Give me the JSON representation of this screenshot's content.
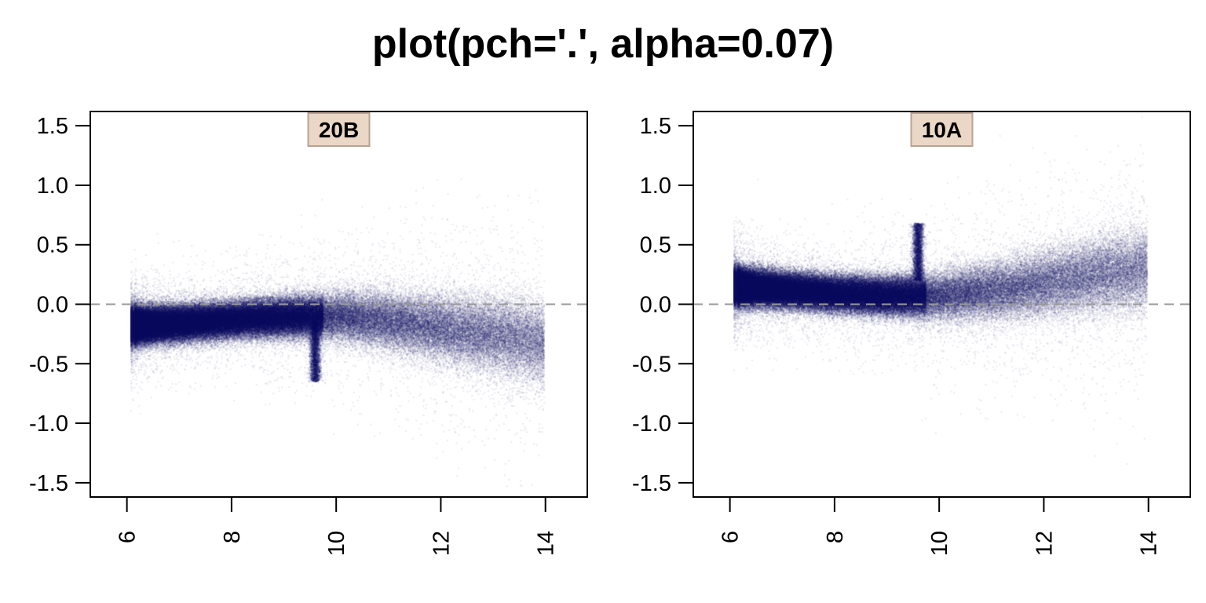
{
  "title": "plot(pch='.', alpha=0.07)",
  "colors": {
    "points": "#000066",
    "refline": "#999999",
    "strip_fill": "#ead7c5",
    "strip_border": "#b8a294"
  },
  "chart_data": [
    {
      "type": "scatter",
      "panel_label": "20B",
      "xlim": [
        5.3,
        14.8
      ],
      "ylim": [
        -1.62,
        1.62
      ],
      "x_ticks": [
        6,
        8,
        10,
        12,
        14
      ],
      "x_tick_labels": [
        "6",
        "8",
        "10",
        "12",
        "14"
      ],
      "y_ticks": [
        -1.5,
        -1.0,
        -0.5,
        0.0,
        0.5,
        1.0,
        1.5
      ],
      "y_tick_labels": [
        "-1.5",
        "-1.0",
        "-0.5",
        "0.0",
        "0.5",
        "1.0",
        "1.5"
      ],
      "reference_line_y": 0.0,
      "point_alpha": 0.07,
      "bulk_trend": [
        [
          6.1,
          -0.18
        ],
        [
          7,
          -0.16
        ],
        [
          8,
          -0.13
        ],
        [
          9,
          -0.11
        ],
        [
          10,
          -0.1
        ],
        [
          11,
          -0.14
        ],
        [
          12,
          -0.2
        ],
        [
          13,
          -0.26
        ],
        [
          14,
          -0.33
        ]
      ],
      "spike": {
        "x": 9.6,
        "y_range": [
          -0.15,
          -0.65
        ]
      },
      "point_count_estimate": 120000
    },
    {
      "type": "scatter",
      "panel_label": "10A",
      "xlim": [
        5.3,
        14.8
      ],
      "ylim": [
        -1.62,
        1.62
      ],
      "x_ticks": [
        6,
        8,
        10,
        12,
        14
      ],
      "x_tick_labels": [
        "6",
        "8",
        "10",
        "12",
        "14"
      ],
      "y_ticks": [
        -1.5,
        -1.0,
        -0.5,
        0.0,
        0.5,
        1.0,
        1.5
      ],
      "y_tick_labels": [
        "-1.5",
        "-1.0",
        "-0.5",
        "0.0",
        "0.5",
        "1.0",
        "1.5"
      ],
      "reference_line_y": 0.0,
      "point_alpha": 0.07,
      "bulk_trend": [
        [
          6.1,
          0.15
        ],
        [
          7,
          0.12
        ],
        [
          8,
          0.09
        ],
        [
          9,
          0.07
        ],
        [
          10,
          0.07
        ],
        [
          11,
          0.11
        ],
        [
          12,
          0.17
        ],
        [
          13,
          0.24
        ],
        [
          14,
          0.31
        ]
      ],
      "spike": {
        "x": 9.6,
        "y_range": [
          0.2,
          0.68
        ]
      },
      "point_count_estimate": 120000
    }
  ]
}
